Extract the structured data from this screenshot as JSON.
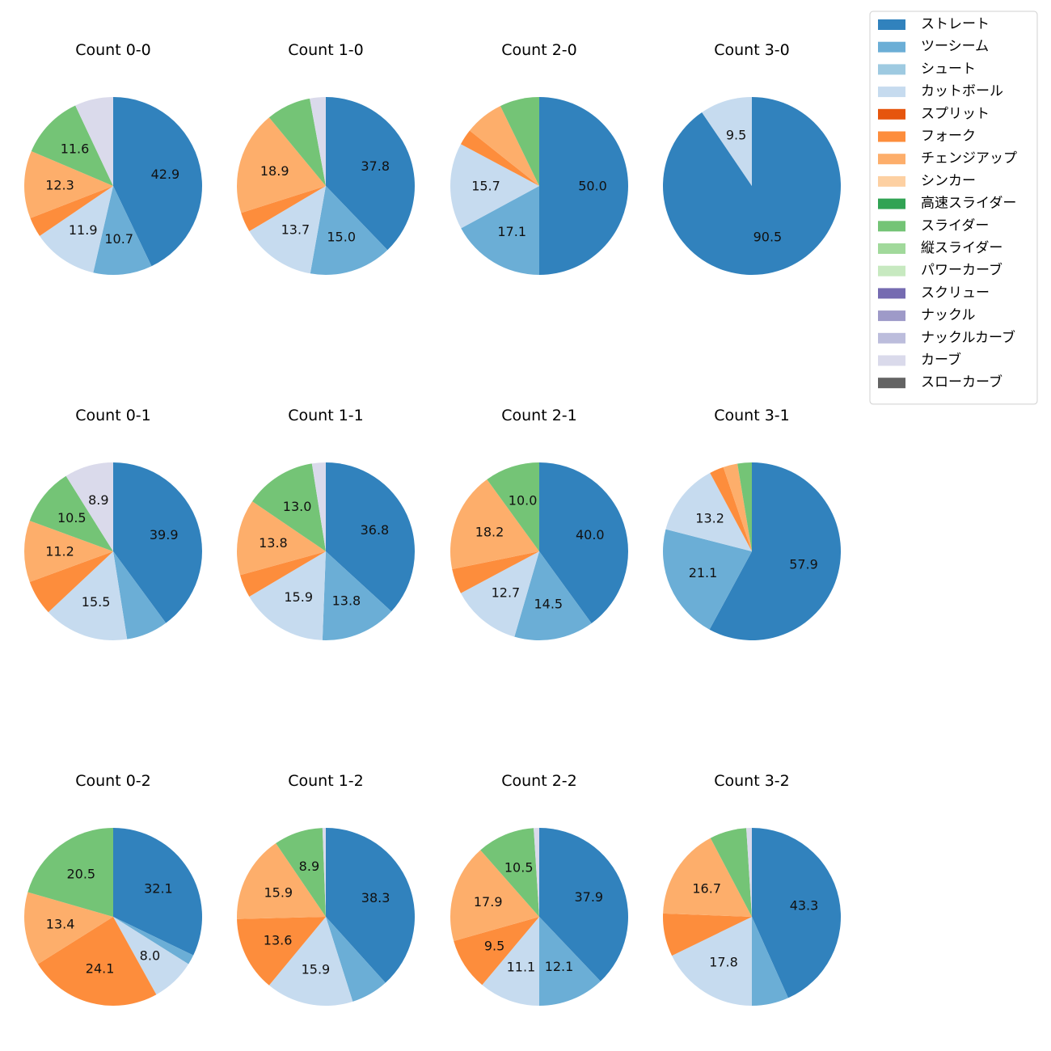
{
  "chart_data": {
    "type": "pie",
    "legend": {
      "placement": "upper-right",
      "entries": [
        {
          "name": "ストレート",
          "color": "#3182bd"
        },
        {
          "name": "ツーシーム",
          "color": "#6baed6"
        },
        {
          "name": "シュート",
          "color": "#9ecae1"
        },
        {
          "name": "カットボール",
          "color": "#c6dbef"
        },
        {
          "name": "スプリット",
          "color": "#e6550d"
        },
        {
          "name": "フォーク",
          "color": "#fd8d3c"
        },
        {
          "name": "チェンジアップ",
          "color": "#fdae6b"
        },
        {
          "name": "シンカー",
          "color": "#fdd0a2"
        },
        {
          "name": "高速スライダー",
          "color": "#31a354"
        },
        {
          "name": "スライダー",
          "color": "#74c476"
        },
        {
          "name": "縦スライダー",
          "color": "#a1d99b"
        },
        {
          "name": "パワーカーブ",
          "color": "#c7e9c0"
        },
        {
          "name": "スクリュー",
          "color": "#756bb1"
        },
        {
          "name": "ナックル",
          "color": "#9e9ac8"
        },
        {
          "name": "ナックルカーブ",
          "color": "#bcbddc"
        },
        {
          "name": "カーブ",
          "color": "#dadaeb"
        },
        {
          "name": "スローカーブ",
          "color": "#636363"
        }
      ]
    },
    "charts": [
      {
        "title": "Count 0-0",
        "slices": [
          {
            "pitch": "ストレート",
            "value": 42.9,
            "label": "42.9"
          },
          {
            "pitch": "ツーシーム",
            "value": 10.7,
            "label": "10.7"
          },
          {
            "pitch": "カットボール",
            "value": 11.9,
            "label": "11.9"
          },
          {
            "pitch": "フォーク",
            "value": 3.6,
            "label": ""
          },
          {
            "pitch": "チェンジアップ",
            "value": 12.3,
            "label": "12.3"
          },
          {
            "pitch": "スライダー",
            "value": 11.6,
            "label": "11.6"
          },
          {
            "pitch": "カーブ",
            "value": 7.0,
            "label": ""
          }
        ]
      },
      {
        "title": "Count 1-0",
        "slices": [
          {
            "pitch": "ストレート",
            "value": 37.8,
            "label": "37.8"
          },
          {
            "pitch": "ツーシーム",
            "value": 15.0,
            "label": "15.0"
          },
          {
            "pitch": "カットボール",
            "value": 13.7,
            "label": "13.7"
          },
          {
            "pitch": "フォーク",
            "value": 3.6,
            "label": ""
          },
          {
            "pitch": "チェンジアップ",
            "value": 18.9,
            "label": "18.9"
          },
          {
            "pitch": "スライダー",
            "value": 8.1,
            "label": ""
          },
          {
            "pitch": "カーブ",
            "value": 2.9,
            "label": ""
          }
        ]
      },
      {
        "title": "Count 2-0",
        "slices": [
          {
            "pitch": "ストレート",
            "value": 50.0,
            "label": "50.0"
          },
          {
            "pitch": "ツーシーム",
            "value": 17.1,
            "label": "17.1"
          },
          {
            "pitch": "カットボール",
            "value": 15.7,
            "label": "15.7"
          },
          {
            "pitch": "フォーク",
            "value": 2.9,
            "label": ""
          },
          {
            "pitch": "チェンジアップ",
            "value": 7.1,
            "label": ""
          },
          {
            "pitch": "スライダー",
            "value": 7.2,
            "label": ""
          }
        ]
      },
      {
        "title": "Count 3-0",
        "slices": [
          {
            "pitch": "ストレート",
            "value": 90.5,
            "label": "90.5"
          },
          {
            "pitch": "カットボール",
            "value": 9.5,
            "label": "9.5"
          }
        ]
      },
      {
        "title": "Count 0-1",
        "slices": [
          {
            "pitch": "ストレート",
            "value": 39.9,
            "label": "39.9"
          },
          {
            "pitch": "ツーシーム",
            "value": 7.6,
            "label": ""
          },
          {
            "pitch": "カットボール",
            "value": 15.5,
            "label": "15.5"
          },
          {
            "pitch": "フォーク",
            "value": 6.4,
            "label": ""
          },
          {
            "pitch": "チェンジアップ",
            "value": 11.2,
            "label": "11.2"
          },
          {
            "pitch": "スライダー",
            "value": 10.5,
            "label": "10.5"
          },
          {
            "pitch": "カーブ",
            "value": 8.9,
            "label": "8.9"
          }
        ]
      },
      {
        "title": "Count 1-1",
        "slices": [
          {
            "pitch": "ストレート",
            "value": 36.8,
            "label": "36.8"
          },
          {
            "pitch": "ツーシーム",
            "value": 13.8,
            "label": "13.8"
          },
          {
            "pitch": "カットボール",
            "value": 15.9,
            "label": "15.9"
          },
          {
            "pitch": "フォーク",
            "value": 4.2,
            "label": ""
          },
          {
            "pitch": "チェンジアップ",
            "value": 13.8,
            "label": "13.8"
          },
          {
            "pitch": "スライダー",
            "value": 13.0,
            "label": "13.0"
          },
          {
            "pitch": "カーブ",
            "value": 2.5,
            "label": ""
          }
        ]
      },
      {
        "title": "Count 2-1",
        "slices": [
          {
            "pitch": "ストレート",
            "value": 40.0,
            "label": "40.0"
          },
          {
            "pitch": "ツーシーム",
            "value": 14.5,
            "label": "14.5"
          },
          {
            "pitch": "カットボール",
            "value": 12.7,
            "label": "12.7"
          },
          {
            "pitch": "フォーク",
            "value": 4.6,
            "label": ""
          },
          {
            "pitch": "チェンジアップ",
            "value": 18.2,
            "label": "18.2"
          },
          {
            "pitch": "スライダー",
            "value": 10.0,
            "label": "10.0"
          }
        ]
      },
      {
        "title": "Count 3-1",
        "slices": [
          {
            "pitch": "ストレート",
            "value": 57.9,
            "label": "57.9"
          },
          {
            "pitch": "ツーシーム",
            "value": 21.1,
            "label": "21.1"
          },
          {
            "pitch": "カットボール",
            "value": 13.2,
            "label": "13.2"
          },
          {
            "pitch": "フォーク",
            "value": 2.6,
            "label": ""
          },
          {
            "pitch": "チェンジアップ",
            "value": 2.6,
            "label": ""
          },
          {
            "pitch": "スライダー",
            "value": 2.6,
            "label": ""
          }
        ]
      },
      {
        "title": "Count 0-2",
        "slices": [
          {
            "pitch": "ストレート",
            "value": 32.1,
            "label": "32.1"
          },
          {
            "pitch": "ツーシーム",
            "value": 1.8,
            "label": ""
          },
          {
            "pitch": "カットボール",
            "value": 8.0,
            "label": "8.0"
          },
          {
            "pitch": "フォーク",
            "value": 24.1,
            "label": "24.1"
          },
          {
            "pitch": "チェンジアップ",
            "value": 13.4,
            "label": "13.4"
          },
          {
            "pitch": "スライダー",
            "value": 20.5,
            "label": "20.5"
          }
        ]
      },
      {
        "title": "Count 1-2",
        "slices": [
          {
            "pitch": "ストレート",
            "value": 38.3,
            "label": "38.3"
          },
          {
            "pitch": "ツーシーム",
            "value": 6.8,
            "label": ""
          },
          {
            "pitch": "カットボール",
            "value": 15.9,
            "label": "15.9"
          },
          {
            "pitch": "フォーク",
            "value": 13.6,
            "label": "13.6"
          },
          {
            "pitch": "チェンジアップ",
            "value": 15.9,
            "label": "15.9"
          },
          {
            "pitch": "スライダー",
            "value": 8.9,
            "label": "8.9"
          },
          {
            "pitch": "カーブ",
            "value": 0.6,
            "label": ""
          }
        ]
      },
      {
        "title": "Count 2-2",
        "slices": [
          {
            "pitch": "ストレート",
            "value": 37.9,
            "label": "37.9"
          },
          {
            "pitch": "ツーシーム",
            "value": 12.1,
            "label": "12.1"
          },
          {
            "pitch": "カットボール",
            "value": 11.1,
            "label": "11.1"
          },
          {
            "pitch": "フォーク",
            "value": 9.5,
            "label": "9.5"
          },
          {
            "pitch": "チェンジアップ",
            "value": 17.9,
            "label": "17.9"
          },
          {
            "pitch": "スライダー",
            "value": 10.5,
            "label": "10.5"
          },
          {
            "pitch": "カーブ",
            "value": 1.0,
            "label": ""
          }
        ]
      },
      {
        "title": "Count 3-2",
        "slices": [
          {
            "pitch": "ストレート",
            "value": 43.3,
            "label": "43.3"
          },
          {
            "pitch": "ツーシーム",
            "value": 6.7,
            "label": ""
          },
          {
            "pitch": "カットボール",
            "value": 17.8,
            "label": "17.8"
          },
          {
            "pitch": "フォーク",
            "value": 7.8,
            "label": ""
          },
          {
            "pitch": "チェンジアップ",
            "value": 16.7,
            "label": "16.7"
          },
          {
            "pitch": "スライダー",
            "value": 6.7,
            "label": ""
          },
          {
            "pitch": "カーブ",
            "value": 1.0,
            "label": ""
          }
        ]
      }
    ]
  }
}
